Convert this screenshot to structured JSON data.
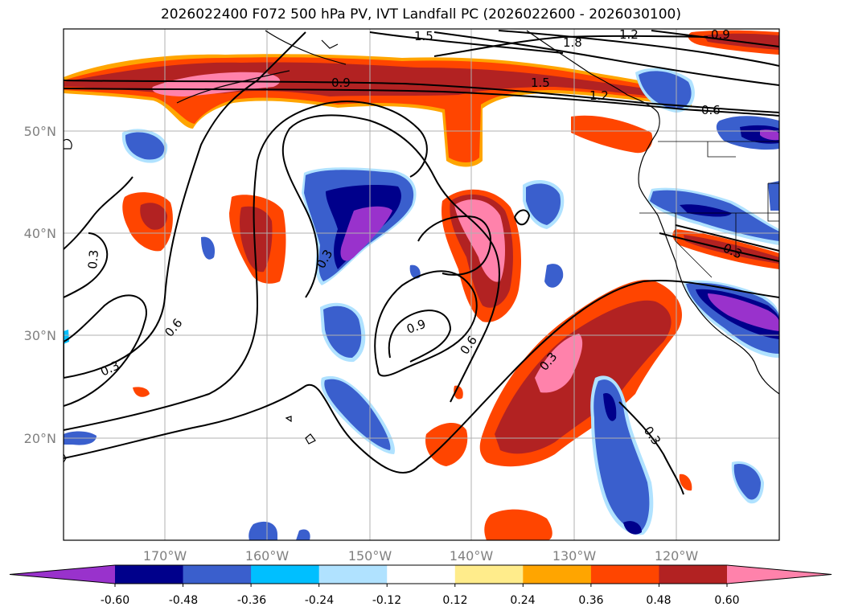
{
  "title": "2026022400 F072 500 hPa PV, IVT Landfall PC (2026022600 - 2026030100)",
  "map": {
    "extent": {
      "lon": [
        -180,
        -110
      ],
      "lat": [
        10,
        60
      ]
    },
    "lat_labels": [
      "20°N",
      "30°N",
      "40°N",
      "50°N"
    ],
    "lon_labels": [
      "170°W",
      "160°W",
      "150°W",
      "140°W",
      "130°W",
      "120°W"
    ],
    "gridlines": true
  },
  "contour_labels": [
    "1.5",
    "1.8",
    "1.2",
    "0.9",
    "1.5",
    "1.2",
    "0.6",
    "0.9",
    "0.3",
    "0.6",
    "0.3",
    "0.9",
    "0.6",
    "0.3",
    "0.3",
    "0.3"
  ],
  "colorbar": {
    "ticks": [
      "-0.60",
      "-0.48",
      "-0.36",
      "-0.24",
      "-0.12",
      "0.12",
      "0.24",
      "0.36",
      "0.48",
      "0.60"
    ],
    "colors": [
      "#9932cc",
      "#00008b",
      "#3a5fcd",
      "#00bfff",
      "#b0e2ff",
      "#ffffff",
      "#ffec8b",
      "#ffa500",
      "#ff4500",
      "#b22222",
      "#ff82ab"
    ],
    "extend": "both"
  }
}
